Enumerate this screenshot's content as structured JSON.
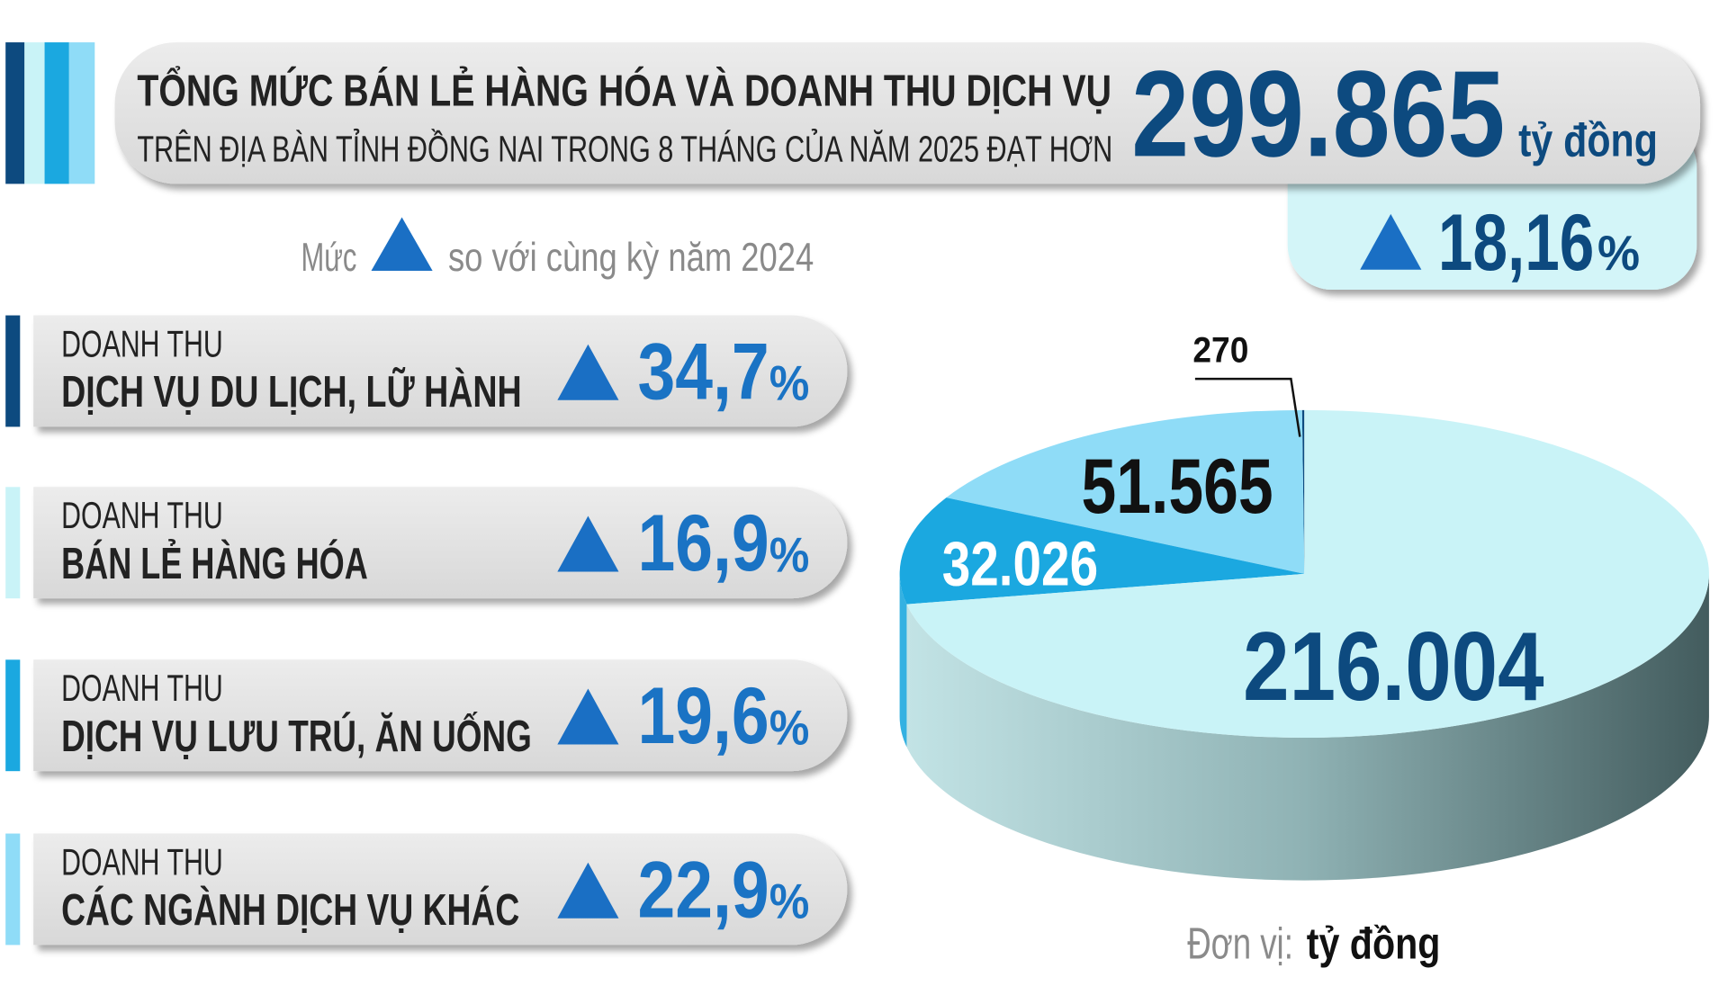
{
  "header": {
    "title": "TỔNG MỨC BÁN LẺ HÀNG HÓA VÀ DOANH THU DỊCH VỤ",
    "subtitle": "TRÊN ĐỊA BÀN TỈNH ĐỒNG NAI TRONG 8 THÁNG CỦA NĂM 2025 ĐẠT HƠN",
    "total": "299.865",
    "total_unit": "tỷ đồng",
    "growth": "18,16",
    "percent_sign": "%"
  },
  "legend": {
    "prefix": "Mức",
    "suffix": "so với cùng kỳ năm 2024"
  },
  "cards": [
    {
      "label": "DOANH THU",
      "name": "DỊCH VỤ DU LỊCH, LỮ HÀNH",
      "growth": "34,7",
      "color": "#0d4a7f"
    },
    {
      "label": "DOANH THU",
      "name": "BÁN LẺ HÀNG HÓA",
      "growth": "16,9",
      "color": "#c9f3f7"
    },
    {
      "label": "DOANH THU",
      "name": "DỊCH VỤ LƯU TRÚ, ĂN UỐNG",
      "growth": "19,6",
      "color": "#1ba8e0"
    },
    {
      "label": "DOANH THU",
      "name": "CÁC NGÀNH DỊCH VỤ KHÁC",
      "growth": "22,9",
      "color": "#8fdcf7"
    }
  ],
  "chart_data": {
    "type": "pie",
    "values": [
      270,
      51565,
      32026,
      216004
    ],
    "value_labels": [
      "270",
      "51.565",
      "32.026",
      "216.004"
    ],
    "colors": [
      "#0d4a7f",
      "#8fdcf7",
      "#1ba8e0",
      "#c9f3f7"
    ],
    "unit_label": "Đơn vị:",
    "unit": "tỷ đồng"
  }
}
